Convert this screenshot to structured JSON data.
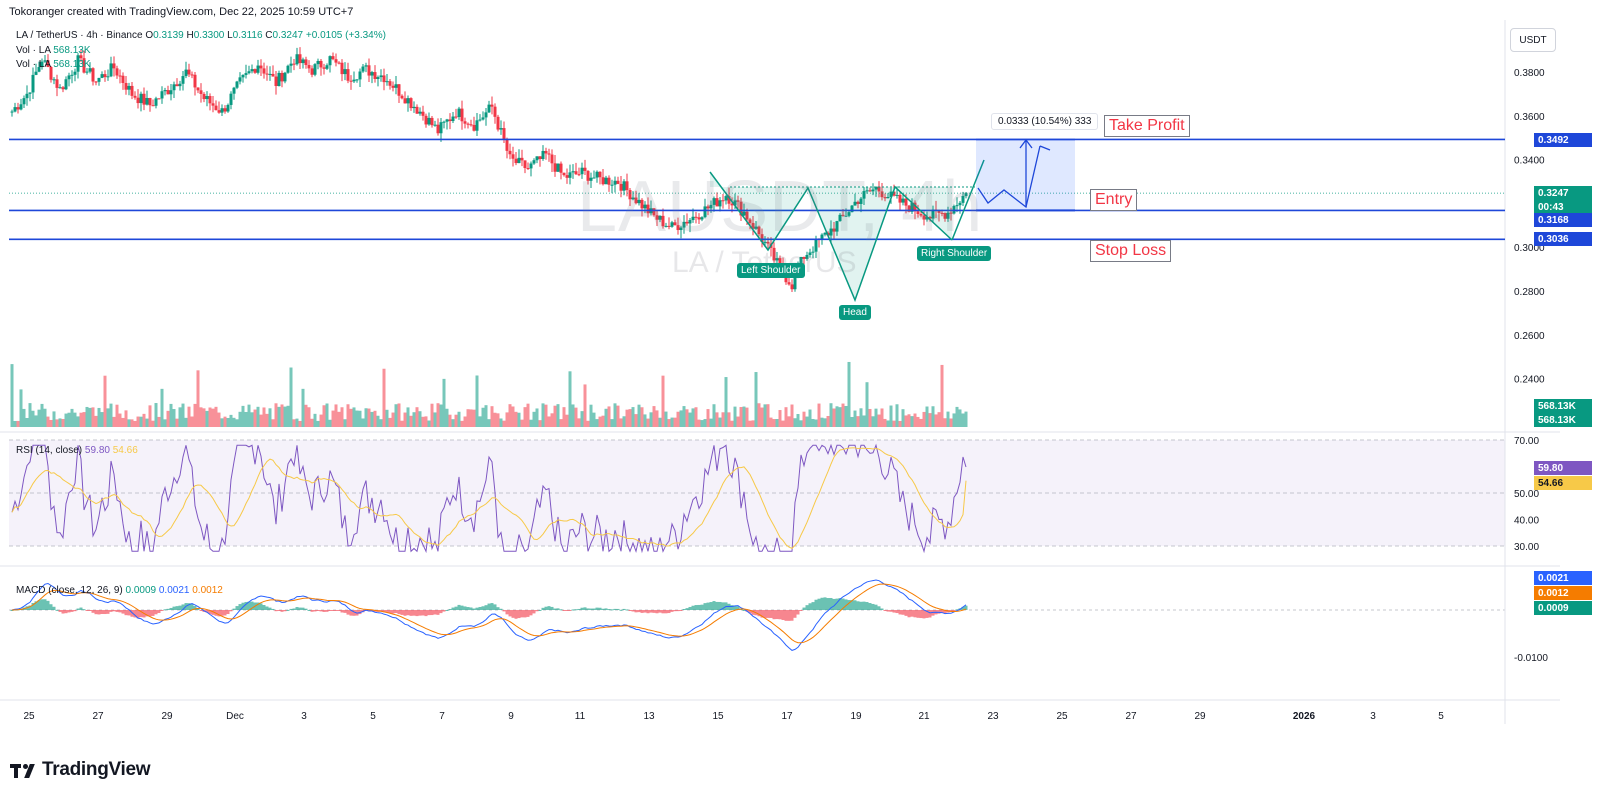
{
  "header": {
    "credit": "Tokoranger created with TradingView.com, Dec 22, 2025 10:59 UTC+7",
    "symbol_line": "LA / TetherUS · 4h · Binance",
    "ohlc": {
      "open_label": "O",
      "open": "0.3139",
      "high_label": "H",
      "high": "0.3300",
      "low_label": "L",
      "low": "0.3116",
      "close_label": "C",
      "close": "0.3247",
      "change": "+0.0105 (+3.34%)"
    },
    "vol_line_1": "Vol · LA",
    "vol_value_1": "568.13K",
    "vol_line_2": "Vol · LA",
    "vol_value_2": "568.13K",
    "rsi_label": "RSI (14, close)",
    "rsi_value": "59.80",
    "rsi_ma_value": "54.66",
    "macd_label": "MACD (close, 12, 26, 9)",
    "macd_hist": "0.0009",
    "macd_line": "0.0021",
    "macd_signal": "0.0012"
  },
  "currency_button": "USDT",
  "watermark": {
    "symbol": "LAUSDT, 4h",
    "name": "LA / TetherUS"
  },
  "annotations": {
    "take_profit": "Take Profit",
    "entry": "Entry",
    "stop_loss": "Stop Loss",
    "left_shoulder": "Left Shoulder",
    "head": "Head",
    "right_shoulder": "Right Shoulder",
    "measure": "0.0333 (10.54%) 333"
  },
  "price_tags": {
    "take_profit": "0.3492",
    "last": "0.3247",
    "countdown": "00:43",
    "entry": "0.3168",
    "stop_loss": "0.3036",
    "volume_1": "568.13K",
    "volume_2": "568.13K",
    "rsi": "59.80",
    "rsi_ma": "54.66",
    "macd_line": "0.0021",
    "macd_signal": "0.0012",
    "macd_hist": "0.0009"
  },
  "colors": {
    "up": "#089981",
    "down": "#f23645",
    "level_line": "#1e47d9",
    "rsi": "#7e57c2",
    "rsi_ma": "#f7c948",
    "macd": "#2962ff",
    "signal": "#f57c00",
    "grid": "#f0f3fa"
  },
  "brand": "TradingView",
  "chart_data": {
    "type": "candlestick",
    "timeframe": "4h",
    "x_ticks": [
      "25",
      "27",
      "29",
      "Dec",
      "3",
      "5",
      "7",
      "9",
      "11",
      "13",
      "15",
      "17",
      "19",
      "21",
      "23",
      "25",
      "27",
      "29",
      "2026",
      "3",
      "5"
    ],
    "price_axis_ticks": [
      "0.3800",
      "0.3600",
      "0.3400",
      "0.3000",
      "0.2800",
      "0.2600",
      "0.2400"
    ],
    "price_range": [
      0.225,
      0.395
    ],
    "rsi_axis_ticks": [
      "70.00",
      "50.00",
      "40.00",
      "30.00"
    ],
    "rsi_bands": [
      30,
      70
    ],
    "macd_axis_ticks": [
      "-0.0100"
    ],
    "levels": {
      "take_profit": 0.3492,
      "entry": 0.3168,
      "stop_loss": 0.3036,
      "last": 0.3247
    },
    "price_path": [
      [
        0,
        0.362
      ],
      [
        5,
        0.37
      ],
      [
        10,
        0.386
      ],
      [
        16,
        0.372
      ],
      [
        22,
        0.385
      ],
      [
        28,
        0.376
      ],
      [
        34,
        0.382
      ],
      [
        40,
        0.37
      ],
      [
        46,
        0.365
      ],
      [
        52,
        0.372
      ],
      [
        58,
        0.38
      ],
      [
        64,
        0.368
      ],
      [
        70,
        0.362
      ],
      [
        76,
        0.375
      ],
      [
        82,
        0.384
      ],
      [
        88,
        0.375
      ],
      [
        94,
        0.386
      ],
      [
        100,
        0.381
      ],
      [
        106,
        0.386
      ],
      [
        112,
        0.378
      ],
      [
        118,
        0.381
      ],
      [
        124,
        0.378
      ],
      [
        130,
        0.37
      ],
      [
        136,
        0.362
      ],
      [
        142,
        0.353
      ],
      [
        148,
        0.362
      ],
      [
        154,
        0.356
      ],
      [
        160,
        0.364
      ],
      [
        166,
        0.34
      ],
      [
        172,
        0.336
      ],
      [
        178,
        0.342
      ],
      [
        184,
        0.332
      ],
      [
        190,
        0.334
      ],
      [
        196,
        0.331
      ],
      [
        202,
        0.33
      ],
      [
        208,
        0.322
      ],
      [
        214,
        0.314
      ],
      [
        220,
        0.309
      ],
      [
        226,
        0.313
      ],
      [
        232,
        0.318
      ],
      [
        238,
        0.324
      ],
      [
        244,
        0.316
      ],
      [
        250,
        0.304
      ],
      [
        256,
        0.29
      ],
      [
        260,
        0.283
      ],
      [
        264,
        0.296
      ],
      [
        270,
        0.304
      ],
      [
        276,
        0.312
      ],
      [
        282,
        0.322
      ],
      [
        288,
        0.327
      ],
      [
        294,
        0.322
      ],
      [
        300,
        0.318
      ],
      [
        306,
        0.314
      ],
      [
        312,
        0.316
      ],
      [
        318,
        0.3247
      ]
    ],
    "series": [
      {
        "name": "RSI (14, close)",
        "last": 59.8
      },
      {
        "name": "RSI-based MA",
        "last": 54.66
      },
      {
        "name": "MACD",
        "last": 0.0021
      },
      {
        "name": "Signal",
        "last": 0.0012
      },
      {
        "name": "Histogram",
        "last": 0.0009
      }
    ]
  }
}
